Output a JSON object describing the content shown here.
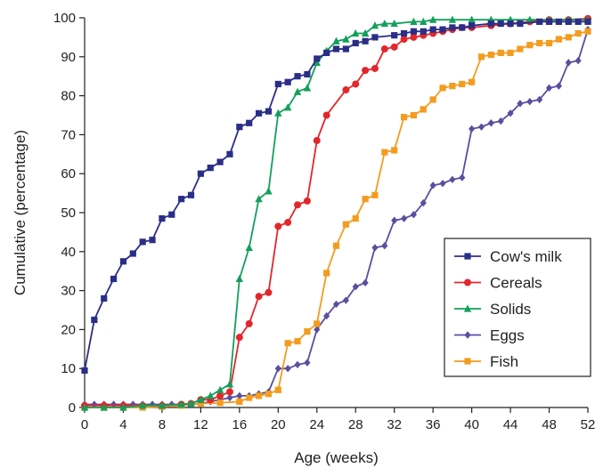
{
  "chart_data": {
    "type": "line",
    "xlabel": "Age (weeks)",
    "ylabel": "Cumulative (percentage)",
    "xlim": [
      0,
      52
    ],
    "ylim": [
      0,
      100
    ],
    "xticks": [
      0,
      4,
      8,
      12,
      16,
      20,
      24,
      28,
      32,
      36,
      40,
      44,
      48,
      52
    ],
    "yticks": [
      0,
      10,
      20,
      30,
      40,
      50,
      60,
      70,
      80,
      90,
      100
    ],
    "grid": false,
    "legend_position": "bottom-right",
    "series": [
      {
        "name": "Cow's milk",
        "color": "#2b2e87",
        "marker": "square",
        "x": [
          0,
          1,
          2,
          3,
          4,
          5,
          6,
          7,
          8,
          9,
          10,
          11,
          12,
          13,
          14,
          15,
          16,
          17,
          18,
          19,
          20,
          21,
          22,
          23,
          24,
          25,
          26,
          27,
          28,
          29,
          30,
          32,
          33,
          34,
          35,
          36,
          37,
          38,
          39,
          40,
          42,
          43,
          44,
          45,
          47,
          48,
          49,
          50,
          51,
          52
        ],
        "y": [
          9.5,
          22.5,
          28,
          33,
          37.5,
          39.5,
          42.5,
          43,
          48.5,
          49.5,
          53.5,
          54.5,
          60,
          61.5,
          63,
          65,
          72,
          73,
          75.5,
          76,
          83,
          83.5,
          85,
          85.5,
          89.5,
          91,
          92,
          92,
          93.5,
          94,
          95,
          95.5,
          96,
          96.5,
          96.5,
          97,
          97,
          97.5,
          97.5,
          98,
          98.5,
          98.5,
          98.5,
          98.5,
          99,
          99,
          99,
          99,
          99,
          99
        ]
      },
      {
        "name": "Cereals",
        "color": "#e3262b",
        "marker": "circle",
        "x": [
          0,
          2,
          4,
          6,
          8,
          10,
          11,
          12,
          13,
          14,
          15,
          16,
          17,
          18,
          19,
          20,
          21,
          22,
          23,
          24,
          25,
          27,
          28,
          29,
          30,
          31,
          32,
          33,
          34,
          35,
          36,
          37,
          38,
          39,
          40,
          42,
          44,
          46,
          48,
          50,
          52
        ],
        "y": [
          0.5,
          0.5,
          0.5,
          0.5,
          0.5,
          0.8,
          1,
          2,
          2,
          3,
          4,
          18,
          21.5,
          28.5,
          29.5,
          46.5,
          47.5,
          52,
          53,
          68.5,
          75,
          81.5,
          83,
          86.5,
          87,
          92,
          92.5,
          94.5,
          95,
          95.5,
          96,
          96.5,
          97,
          97.5,
          97.5,
          98,
          98.5,
          99,
          99.5,
          99.5,
          99.8
        ]
      },
      {
        "name": "Solids",
        "color": "#12a05a",
        "marker": "triangle",
        "x": [
          0,
          2,
          4,
          6,
          8,
          10,
          11,
          12,
          13,
          14,
          15,
          16,
          17,
          18,
          19,
          20,
          21,
          22,
          23,
          24,
          25,
          26,
          27,
          28,
          29,
          30,
          31,
          32,
          34,
          35,
          36,
          38,
          40,
          42,
          44,
          46,
          48,
          50,
          52
        ],
        "y": [
          0,
          0,
          0,
          0.5,
          0.5,
          0.8,
          1,
          2,
          3,
          4.5,
          6,
          33,
          41,
          53.5,
          55.5,
          75.5,
          77,
          81,
          82,
          88.5,
          91.5,
          94,
          94.5,
          96,
          96,
          98,
          98.5,
          98.5,
          99,
          99,
          99.5,
          99.5,
          99.5,
          99.5,
          99.5,
          99.5,
          99.5,
          99.5,
          99.5
        ]
      },
      {
        "name": "Eggs",
        "color": "#5a4f9f",
        "marker": "diamond",
        "x": [
          0,
          1,
          2,
          3,
          4,
          5,
          6,
          7,
          8,
          9,
          10,
          11,
          12,
          13,
          14,
          15,
          16,
          17,
          18,
          19,
          20,
          21,
          22,
          23,
          24,
          25,
          26,
          27,
          28,
          29,
          30,
          31,
          32,
          33,
          34,
          35,
          36,
          37,
          38,
          39,
          40,
          41,
          42,
          43,
          44,
          45,
          46,
          47,
          48,
          49,
          50,
          51,
          52
        ],
        "y": [
          0.8,
          0.8,
          0.8,
          0.8,
          0.8,
          0.8,
          0.8,
          0.8,
          0.8,
          0.8,
          0.8,
          0.8,
          1,
          1.5,
          2,
          2.5,
          3,
          3,
          3.5,
          4,
          10,
          10,
          11,
          11.5,
          20,
          23.5,
          26.5,
          27.5,
          31,
          32,
          41,
          41.5,
          48,
          48.5,
          49.5,
          52.5,
          57,
          57.5,
          58.5,
          59,
          71.5,
          72,
          73,
          73.5,
          75.5,
          78,
          78.5,
          79,
          82,
          82.5,
          88.5,
          89,
          97
        ]
      },
      {
        "name": "Fish",
        "color": "#f39c1f",
        "marker": "square",
        "x": [
          0,
          2,
          4,
          6,
          8,
          10,
          12,
          14,
          16,
          17,
          18,
          19,
          20,
          21,
          22,
          23,
          24,
          25,
          26,
          27,
          28,
          29,
          30,
          31,
          32,
          33,
          34,
          35,
          36,
          37,
          38,
          39,
          40,
          41,
          42,
          43,
          44,
          45,
          46,
          47,
          48,
          49,
          50,
          51,
          52
        ],
        "y": [
          0,
          0,
          0,
          0,
          0.2,
          0.5,
          1,
          1.2,
          1.5,
          2.5,
          3,
          3.5,
          4.5,
          16.5,
          17,
          19.5,
          21.5,
          34.5,
          41.5,
          47,
          48.5,
          53.5,
          54.5,
          65.5,
          66,
          74.5,
          75,
          76.5,
          79,
          82,
          82.5,
          83,
          83.5,
          90,
          90.5,
          91,
          91,
          92,
          93,
          93.5,
          93.5,
          94.5,
          95,
          96,
          96.5
        ]
      }
    ]
  }
}
